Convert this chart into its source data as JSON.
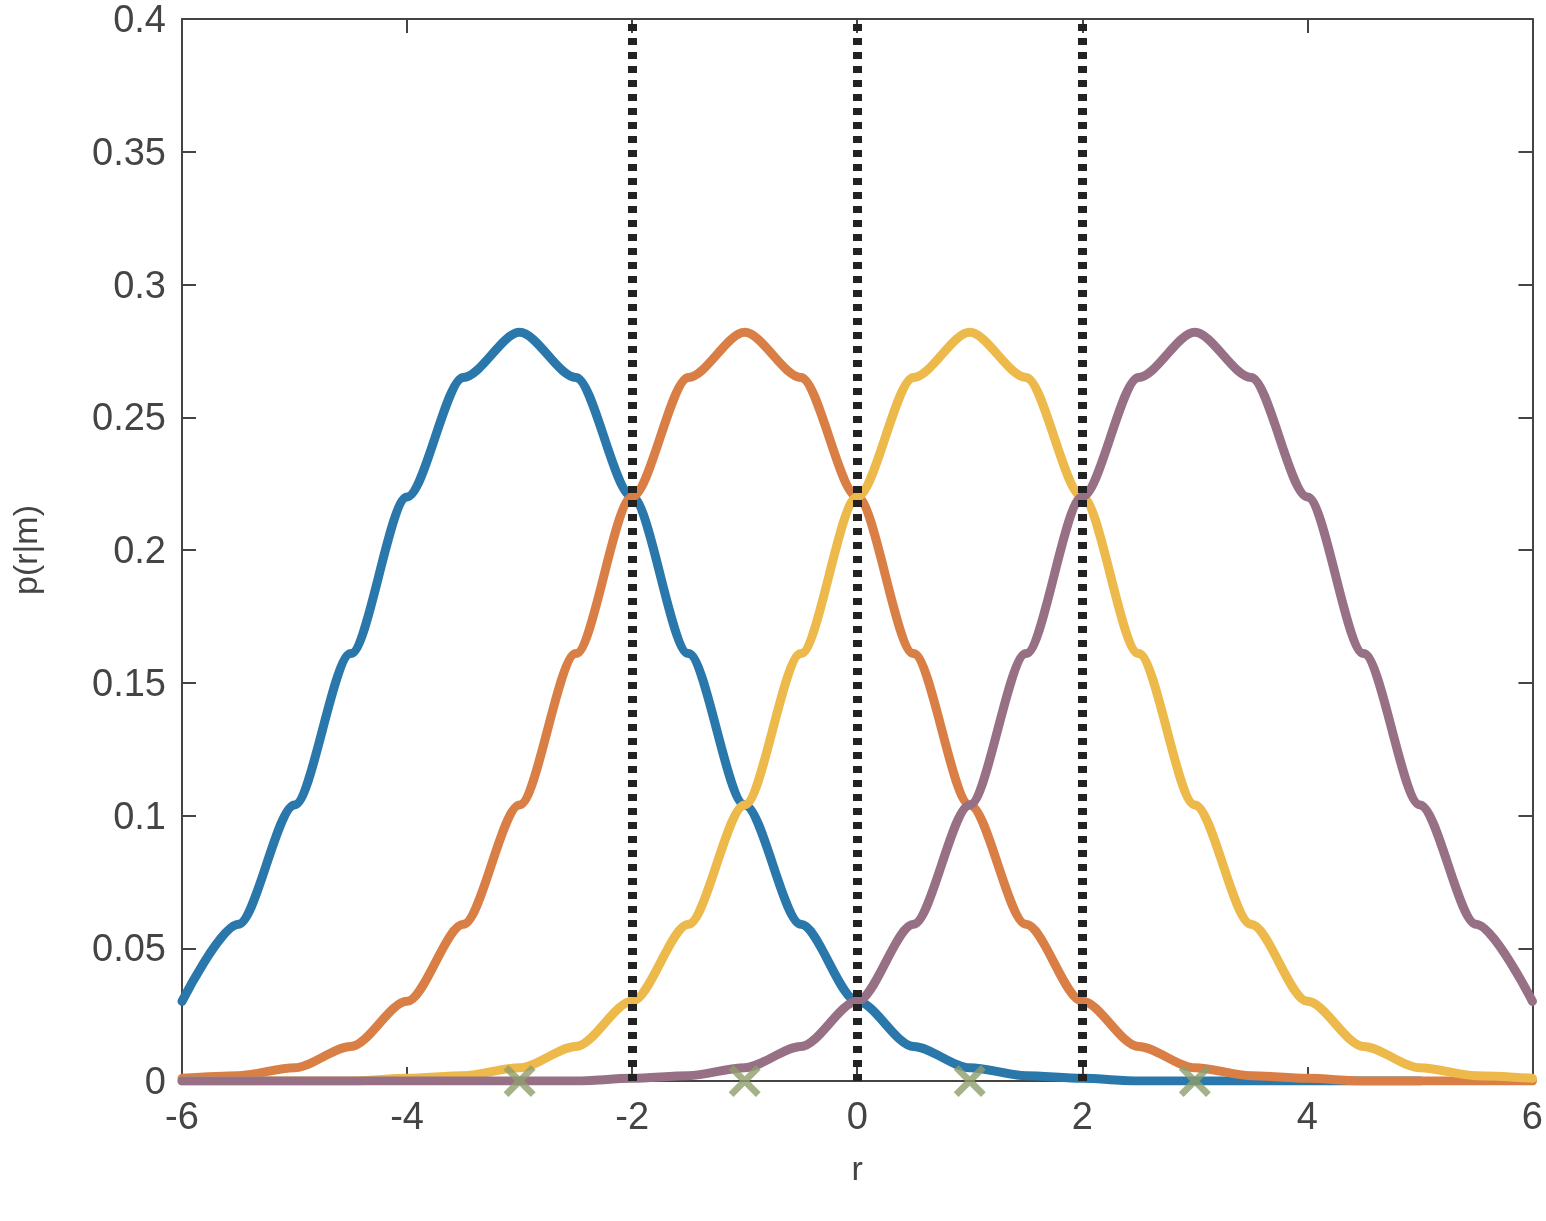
{
  "chart_data": {
    "type": "line",
    "xlabel": "r",
    "ylabel": "p(r|m)",
    "x": [
      -6,
      -5.5,
      -5,
      -4.5,
      -4,
      -3.5,
      -3,
      -2.5,
      -2,
      -1.5,
      -1,
      -0.5,
      0,
      0.5,
      1,
      1.5,
      2,
      2.5,
      3,
      3.5,
      4,
      4.5,
      5,
      5.5,
      6
    ],
    "series": [
      {
        "color": "#2a77ac",
        "values": [
          0.03,
          0.059,
          0.104,
          0.161,
          0.22,
          0.265,
          0.282,
          0.265,
          0.22,
          0.161,
          0.104,
          0.059,
          0.03,
          0.013,
          0.005,
          0.002,
          0.001,
          0,
          0,
          0,
          0,
          0,
          0,
          null,
          null
        ]
      },
      {
        "color": "#d97f45",
        "values": [
          0.001,
          0.002,
          0.005,
          0.013,
          0.03,
          0.059,
          0.104,
          0.161,
          0.22,
          0.265,
          0.282,
          0.265,
          0.22,
          0.161,
          0.104,
          0.059,
          0.03,
          0.013,
          0.005,
          0.002,
          0.001,
          0,
          0,
          0,
          0
        ]
      },
      {
        "color": "#ecb94a",
        "values": [
          0,
          0,
          0,
          0,
          0.001,
          0.002,
          0.005,
          0.013,
          0.03,
          0.059,
          0.104,
          0.161,
          0.22,
          0.265,
          0.282,
          0.265,
          0.22,
          0.161,
          0.104,
          0.059,
          0.03,
          0.013,
          0.005,
          0.002,
          0.001
        ]
      },
      {
        "color": "#977086",
        "values": [
          0,
          0,
          0,
          0,
          0,
          0,
          0,
          0,
          0.001,
          0.002,
          0.005,
          0.013,
          0.03,
          0.059,
          0.104,
          0.161,
          0.22,
          0.265,
          0.282,
          0.265,
          0.22,
          0.161,
          0.104,
          0.059,
          0.03
        ]
      },
      {
        "type": "scatter",
        "x": [
          -3,
          -1,
          1,
          3
        ],
        "color": "#8e9e6c",
        "marker": "cross",
        "values": [
          0,
          0,
          0,
          0
        ]
      }
    ],
    "ref_lines": [
      {
        "axis": "x",
        "value": -2,
        "color": "#222222",
        "line_style": "dotted"
      },
      {
        "axis": "x",
        "value": 0,
        "color": "#222222",
        "line_style": "dotted"
      },
      {
        "axis": "x",
        "value": 2,
        "color": "#222222",
        "line_style": "dotted"
      }
    ],
    "xlim": [
      -6,
      6
    ],
    "xticks": [
      -6,
      -4,
      -2,
      0,
      2,
      4,
      6
    ],
    "ylim": [
      0,
      0.4
    ],
    "yticks": [
      0,
      0.05,
      0.1,
      0.15,
      0.2,
      0.25,
      0.3,
      0.35,
      0.4
    ]
  }
}
